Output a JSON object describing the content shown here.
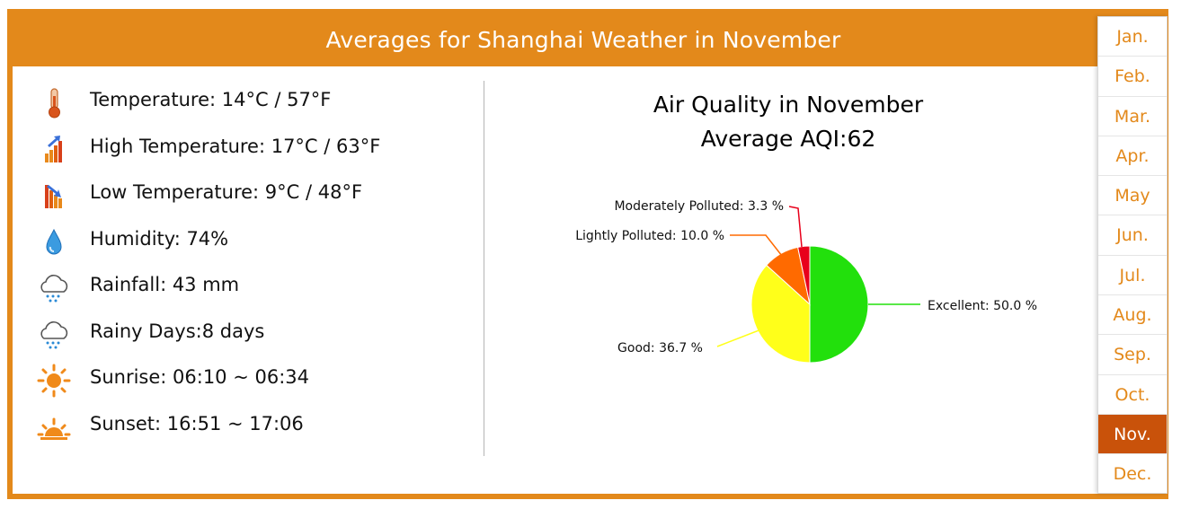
{
  "header": {
    "title": "Averages for Shanghai Weather in November"
  },
  "stats": [
    {
      "icon": "thermometer-icon",
      "text": "Temperature: 14°C / 57°F"
    },
    {
      "icon": "high-temperature-icon",
      "text": "High Temperature: 17°C / 63°F"
    },
    {
      "icon": "low-temperature-icon",
      "text": "Low Temperature: 9°C / 48°F"
    },
    {
      "icon": "humidity-drop-icon",
      "text": "Humidity: 74%"
    },
    {
      "icon": "rain-cloud-icon",
      "text": "Rainfall: 43 mm"
    },
    {
      "icon": "rain-cloud-icon",
      "text": "Rainy Days:8 days"
    },
    {
      "icon": "sunrise-icon",
      "text": "Sunrise: 06:10 ~ 06:34"
    },
    {
      "icon": "sunset-icon",
      "text": "Sunset: 16:51 ~ 17:06"
    }
  ],
  "chart_data": {
    "type": "pie",
    "title": "Air Quality in November",
    "subtitle": "Average AQI:62",
    "slices": [
      {
        "name": "Excellent",
        "value": 50.0,
        "label": "Excellent: 50.0 %",
        "color": "#22E00C"
      },
      {
        "name": "Good",
        "value": 36.7,
        "label": "Good: 36.7 %",
        "color": "#FFFF1A"
      },
      {
        "name": "Lightly Polluted",
        "value": 10.0,
        "label": "Lightly Polluted: 10.0 %",
        "color": "#FF6A00"
      },
      {
        "name": "Moderately Polluted",
        "value": 3.3,
        "label": "Moderately Polluted: 3.3 %",
        "color": "#E8001B"
      }
    ]
  },
  "months": {
    "items": [
      "Jan.",
      "Feb.",
      "Mar.",
      "Apr.",
      "May",
      "Jun.",
      "Jul.",
      "Aug.",
      "Sep.",
      "Oct.",
      "Nov.",
      "Dec."
    ],
    "active": "Nov."
  },
  "colors": {
    "accent": "#E3891B",
    "active_month": "#C9520A"
  }
}
